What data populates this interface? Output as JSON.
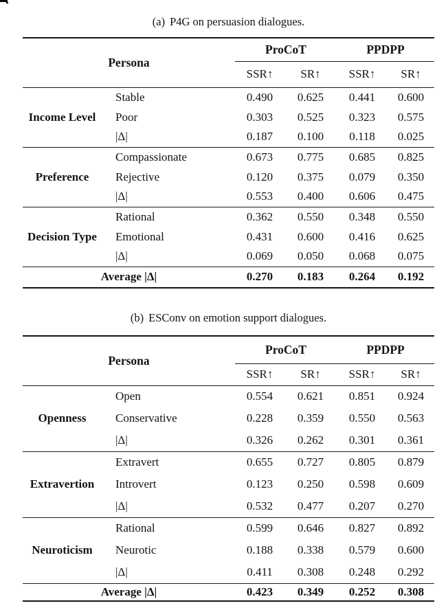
{
  "page": {
    "colors": {
      "background": "#ffffff",
      "text": "#131313",
      "rule": "#1a1a1a"
    }
  },
  "tables": [
    {
      "caption_label": "(a)",
      "caption_text": "P4G on persuasion dialogues.",
      "persona_header": "Persona",
      "group_headers": [
        "ProCoT",
        "PPDPP"
      ],
      "metric_headers": [
        "SSR↑",
        "SR↑",
        "SSR↑",
        "SR↑"
      ],
      "sections": [
        {
          "group": "Income Level",
          "rows": [
            {
              "label": "Stable",
              "values": [
                "0.490",
                "0.625",
                "0.441",
                "0.600"
              ]
            },
            {
              "label": "Poor",
              "values": [
                "0.303",
                "0.525",
                "0.323",
                "0.575"
              ]
            },
            {
              "label": "|Δ|",
              "values": [
                "0.187",
                "0.100",
                "0.118",
                "0.025"
              ]
            }
          ]
        },
        {
          "group": "Preference",
          "rows": [
            {
              "label": "Compassionate",
              "values": [
                "0.673",
                "0.775",
                "0.685",
                "0.825"
              ]
            },
            {
              "label": "Rejective",
              "values": [
                "0.120",
                "0.375",
                "0.079",
                "0.350"
              ]
            },
            {
              "label": "|Δ|",
              "values": [
                "0.553",
                "0.400",
                "0.606",
                "0.475"
              ]
            }
          ]
        },
        {
          "group": "Decision Type",
          "rows": [
            {
              "label": "Rational",
              "values": [
                "0.362",
                "0.550",
                "0.348",
                "0.550"
              ]
            },
            {
              "label": "Emotional",
              "values": [
                "0.431",
                "0.600",
                "0.416",
                "0.625"
              ]
            },
            {
              "label": "|Δ|",
              "values": [
                "0.069",
                "0.050",
                "0.068",
                "0.075"
              ]
            }
          ]
        }
      ],
      "average_label": "Average |Δ|",
      "average_values": [
        "0.270",
        "0.183",
        "0.264",
        "0.192"
      ]
    },
    {
      "caption_label": "(b)",
      "caption_text": "ESConv on emotion support dialogues.",
      "persona_header": "Persona",
      "group_headers": [
        "ProCoT",
        "PPDPP"
      ],
      "metric_headers": [
        "SSR↑",
        "SR↑",
        "SSR↑",
        "SR↑"
      ],
      "sections": [
        {
          "group": "Openness",
          "rows": [
            {
              "label": "Open",
              "values": [
                "0.554",
                "0.621",
                "0.851",
                "0.924"
              ]
            },
            {
              "label": "Conservative",
              "values": [
                "0.228",
                "0.359",
                "0.550",
                "0.563"
              ]
            },
            {
              "label": "|Δ|",
              "values": [
                "0.326",
                "0.262",
                "0.301",
                "0.361"
              ]
            }
          ]
        },
        {
          "group": "Extravertion",
          "rows": [
            {
              "label": "Extravert",
              "values": [
                "0.655",
                "0.727",
                "0.805",
                "0.879"
              ]
            },
            {
              "label": "Introvert",
              "values": [
                "0.123",
                "0.250",
                "0.598",
                "0.609"
              ]
            },
            {
              "label": "|Δ|",
              "values": [
                "0.532",
                "0.477",
                "0.207",
                "0.270"
              ]
            }
          ]
        },
        {
          "group": "Neuroticism",
          "rows": [
            {
              "label": "Rational",
              "values": [
                "0.599",
                "0.646",
                "0.827",
                "0.892"
              ]
            },
            {
              "label": "Neurotic",
              "values": [
                "0.188",
                "0.338",
                "0.579",
                "0.600"
              ]
            },
            {
              "label": "|Δ|",
              "values": [
                "0.411",
                "0.308",
                "0.248",
                "0.292"
              ]
            }
          ]
        }
      ],
      "average_label": "Average |Δ|",
      "average_values": [
        "0.423",
        "0.349",
        "0.252",
        "0.308"
      ]
    }
  ]
}
